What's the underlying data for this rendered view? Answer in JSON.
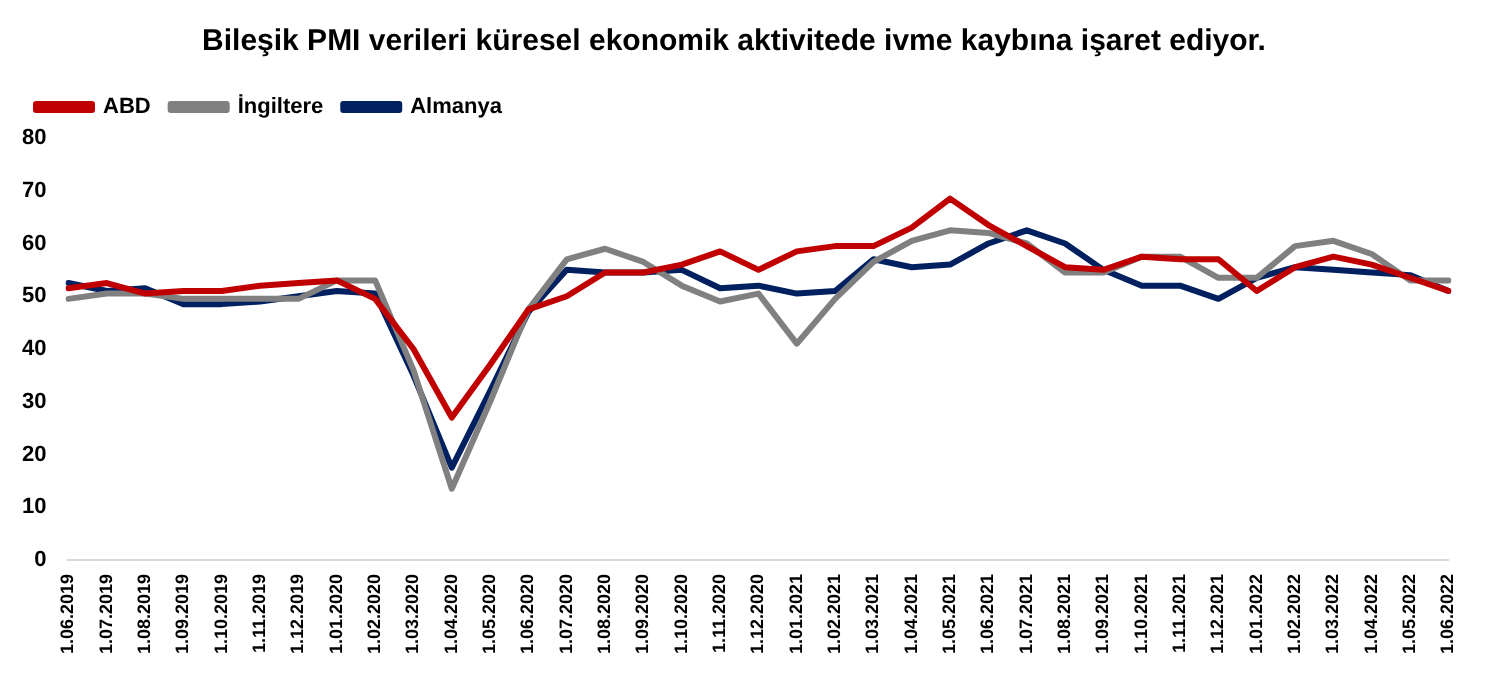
{
  "chart_data": {
    "type": "line",
    "title": "Bileşik PMI verileri küresel ekonomik aktivitede ivme kaybına işaret ediyor.",
    "categories": [
      "1.06.2019",
      "1.07.2019",
      "1.08.2019",
      "1.09.2019",
      "1.10.2019",
      "1.11.2019",
      "1.12.2019",
      "1.01.2020",
      "1.02.2020",
      "1.03.2020",
      "1.04.2020",
      "1.05.2020",
      "1.06.2020",
      "1.07.2020",
      "1.08.2020",
      "1.09.2020",
      "1.10.2020",
      "1.11.2020",
      "1.12.2020",
      "1.01.2021",
      "1.02.2021",
      "1.03.2021",
      "1.04.2021",
      "1.05.2021",
      "1.06.2021",
      "1.07.2021",
      "1.08.2021",
      "1.09.2021",
      "1.10.2021",
      "1.11.2021",
      "1.12.2021",
      "1.01.2022",
      "1.02.2022",
      "1.03.2022",
      "1.04.2022",
      "1.05.2022",
      "1.06.2022"
    ],
    "series": [
      {
        "name": "ABD",
        "color": "#c00000",
        "values": [
          51.5,
          52.5,
          50.5,
          51,
          51,
          52,
          52.5,
          53,
          49.5,
          40,
          27,
          37,
          47.5,
          50,
          54.5,
          54.5,
          56,
          58.5,
          55,
          58.5,
          59.5,
          59.5,
          63,
          68.5,
          63.5,
          59.5,
          55.5,
          55,
          57.5,
          57,
          57,
          51,
          55.5,
          57.5,
          56,
          53.5,
          51
        ]
      },
      {
        "name": "İngiltere",
        "color": "#808080",
        "values": [
          49.5,
          50.5,
          50.5,
          49.5,
          49.5,
          49.5,
          49.5,
          53,
          53,
          36,
          13.5,
          30,
          47.5,
          57,
          59,
          56.5,
          52,
          49,
          50.5,
          41,
          49.5,
          56.5,
          60.5,
          62.5,
          62,
          60,
          54.5,
          54.5,
          57.5,
          57.5,
          53.5,
          53.5,
          59.5,
          60.5,
          58,
          53,
          53
        ]
      },
      {
        "name": "Almanya",
        "color": "#002060",
        "values": [
          52.5,
          51,
          51.5,
          48.5,
          48.5,
          49,
          50,
          51,
          50.5,
          35,
          17.5,
          32,
          47,
          55,
          54.5,
          54.5,
          55,
          51.5,
          52,
          50.5,
          51,
          57,
          55.5,
          56,
          60,
          62.5,
          60,
          55,
          52,
          52,
          49.5,
          53.5,
          55.5,
          55,
          54.5,
          54,
          51
        ]
      }
    ],
    "ylim": [
      0,
      80
    ],
    "yticks": [
      0,
      10,
      20,
      30,
      40,
      50,
      60,
      70,
      80
    ],
    "grid": false,
    "legend": "top left",
    "marker": "none",
    "line_style": "solid"
  }
}
